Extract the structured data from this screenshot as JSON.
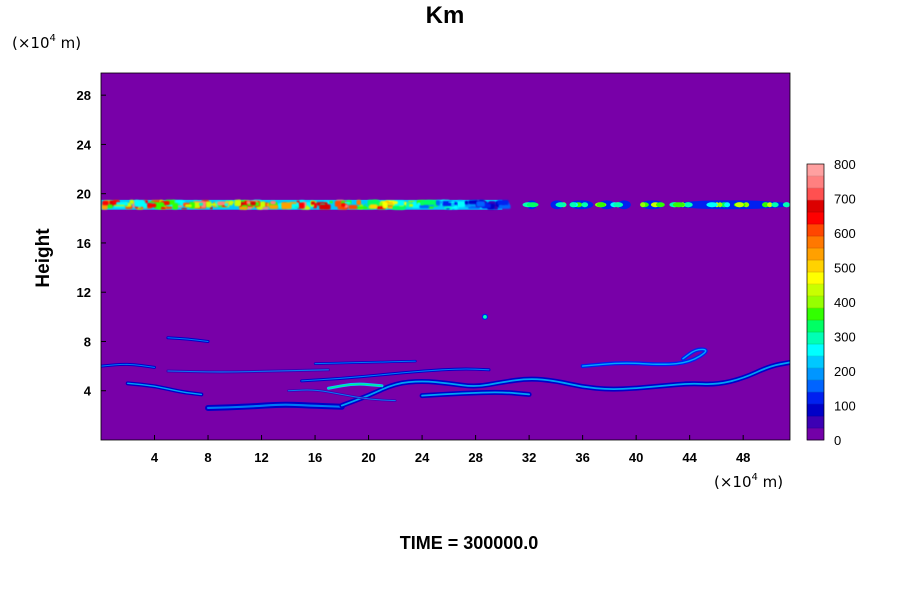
{
  "chart_data": {
    "type": "heatmap",
    "title": "Km",
    "ylabel": "Height",
    "x_unit": {
      "prefix": "(×10",
      "exponent": "4",
      "suffix": " m)"
    },
    "y_unit": {
      "prefix": "(×10",
      "exponent": "4",
      "suffix": " m)"
    },
    "xlim": [
      0,
      51.5
    ],
    "ylim": [
      0,
      29.8
    ],
    "x_ticks": [
      4,
      8,
      12,
      16,
      20,
      24,
      28,
      32,
      36,
      40,
      44,
      48
    ],
    "y_ticks": [
      4,
      8,
      12,
      16,
      20,
      24,
      28
    ],
    "colorbar": {
      "min": 0,
      "max": 800,
      "ticks": [
        0,
        100,
        200,
        300,
        400,
        500,
        600,
        700,
        800
      ],
      "colors": [
        "#7300a8",
        "#3c00b4",
        "#0000c8",
        "#0020f0",
        "#0064ff",
        "#0096ff",
        "#00c8ff",
        "#00ffff",
        "#00ffb4",
        "#00ff64",
        "#32ff00",
        "#96ff00",
        "#c8ff00",
        "#ffff00",
        "#ffd200",
        "#ffa000",
        "#ff7800",
        "#ff4600",
        "#ff0000",
        "#dc0000",
        "#ff5050",
        "#ff8080",
        "#ffa0a0"
      ]
    },
    "background_color": "#7800a8",
    "features": [
      {
        "kind": "upper_layer",
        "x_range": [
          0,
          51.5
        ],
        "y_range": [
          18.7,
          19.5
        ],
        "note": "strong band, values up to ~800 for x<30, weaker patches beyond"
      },
      {
        "kind": "lower_filaments",
        "x_range": [
          0,
          51.5
        ],
        "y_range": [
          2.4,
          7.5
        ],
        "values_approx": [
          50,
          250
        ]
      }
    ]
  },
  "footer": {
    "text": "TIME = 300000.0"
  }
}
